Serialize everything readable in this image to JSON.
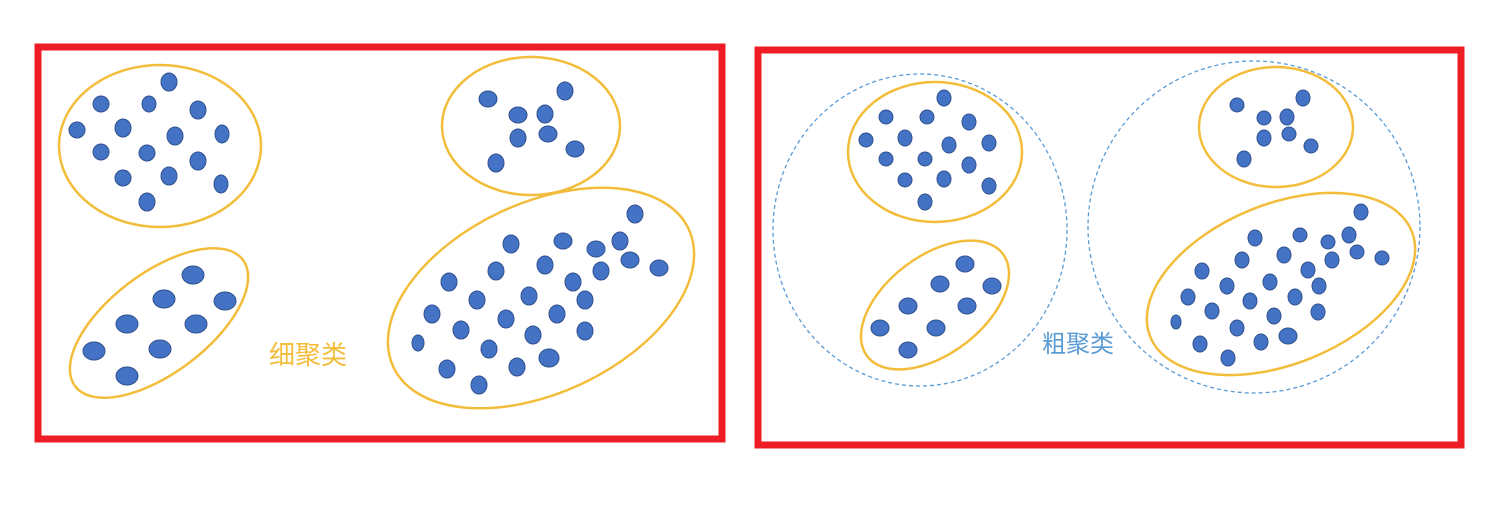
{
  "colors": {
    "frame": "#ee1c25",
    "cluster_outline": "#f3bd3c",
    "coarse_outline": "#5b9bd5",
    "point_fill": "#4472c4",
    "point_stroke": "#2f528f",
    "fine_label_color": "#f3bd3c",
    "coarse_label_color": "#5b9bd5"
  },
  "panels": {
    "fine": {
      "label": "细聚类"
    },
    "coarse": {
      "label": "粗聚类"
    }
  }
}
